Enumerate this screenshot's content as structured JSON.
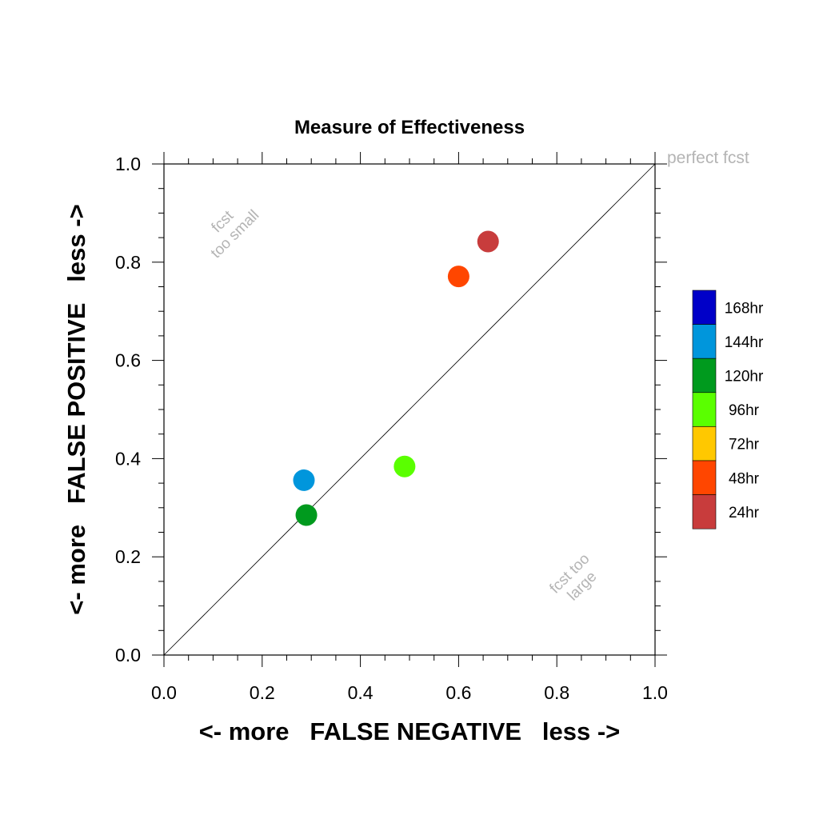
{
  "chart_data": {
    "type": "scatter",
    "title": "Measure of Effectiveness",
    "xlabel": "<- more   FALSE NEGATIVE   less ->",
    "ylabel": "<- more   FALSE POSITIVE   less ->",
    "xlim": [
      0.0,
      1.0
    ],
    "ylim": [
      0.0,
      1.0
    ],
    "xticks": [
      "0.0",
      "0.2",
      "0.4",
      "0.6",
      "0.8",
      "1.0"
    ],
    "yticks": [
      "0.0",
      "0.2",
      "0.4",
      "0.6",
      "0.8",
      "1.0"
    ],
    "grid": false,
    "diagonal_line": true,
    "annotations": {
      "perfect": "perfect fcst",
      "too_small_1": "fcst",
      "too_small_2": "too small",
      "too_large_1": "fcst too",
      "too_large_2": "large"
    },
    "legend": {
      "placement": "right",
      "items": [
        {
          "label": "168hr",
          "color": "#0000C8"
        },
        {
          "label": "144hr",
          "color": "#0096DC"
        },
        {
          "label": "120hr",
          "color": "#009A1E"
        },
        {
          "label": "96hr",
          "color": "#5AFF00"
        },
        {
          "label": "72hr",
          "color": "#FFC800"
        },
        {
          "label": "48hr",
          "color": "#FF4600"
        },
        {
          "label": "24hr",
          "color": "#C83C3C"
        }
      ]
    },
    "series": [
      {
        "name": "24hr",
        "color": "#C83C3C",
        "x": 0.66,
        "y": 0.842
      },
      {
        "name": "48hr",
        "color": "#FF4600",
        "x": 0.6,
        "y": 0.771
      },
      {
        "name": "96hr",
        "color": "#5AFF00",
        "x": 0.49,
        "y": 0.384
      },
      {
        "name": "144hr",
        "color": "#0096DC",
        "x": 0.285,
        "y": 0.356
      },
      {
        "name": "120hr",
        "color": "#009A1E",
        "x": 0.29,
        "y": 0.285
      }
    ]
  }
}
